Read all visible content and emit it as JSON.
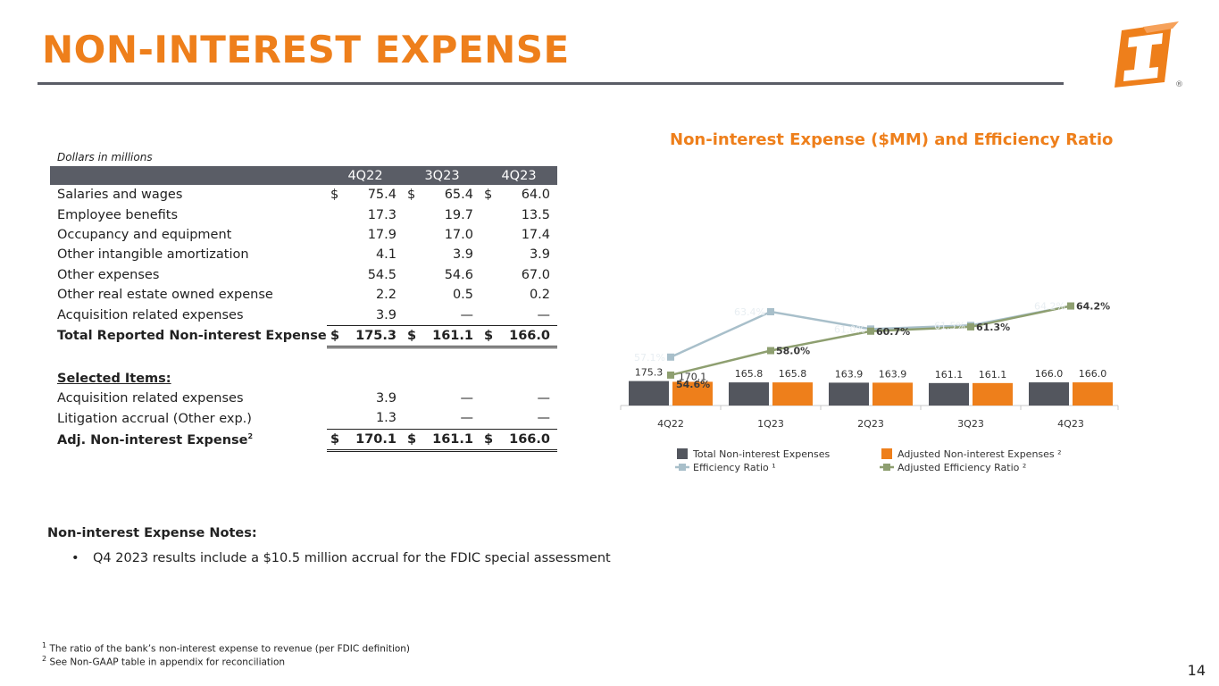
{
  "header": {
    "title": "NON-INTEREST EXPENSE"
  },
  "table": {
    "caption": "Dollars in millions",
    "columns": [
      "4Q22",
      "3Q23",
      "4Q23"
    ],
    "rows": [
      {
        "label": "Salaries and wages",
        "values": [
          "75.4",
          "65.4",
          "64.0"
        ],
        "dollar": true
      },
      {
        "label": "Employee benefits",
        "values": [
          "17.3",
          "19.7",
          "13.5"
        ]
      },
      {
        "label": "Occupancy and equipment",
        "values": [
          "17.9",
          "17.0",
          "17.4"
        ]
      },
      {
        "label": "Other intangible amortization",
        "values": [
          "4.1",
          "3.9",
          "3.9"
        ]
      },
      {
        "label": "Other expenses",
        "values": [
          "54.5",
          "54.6",
          "67.0"
        ]
      },
      {
        "label": "Other real estate owned expense",
        "values": [
          "2.2",
          "0.5",
          "0.2"
        ]
      },
      {
        "label": "Acquisition related expenses",
        "values": [
          "3.9",
          "—",
          "—"
        ]
      },
      {
        "label": "Total Reported Non-interest Expense",
        "values": [
          "175.3",
          "161.1",
          "166.0"
        ],
        "dollar": true,
        "bold": true
      }
    ],
    "selected_header": "Selected Items:",
    "selected_rows": [
      {
        "label": "Acquisition related expenses",
        "values": [
          "3.9",
          "—",
          "—"
        ]
      },
      {
        "label": "Litigation accrual (Other exp.)",
        "values": [
          "1.3",
          "—",
          "—"
        ]
      }
    ],
    "adj_row": {
      "label": "Adj. Non-interest Expense",
      "sup": "2",
      "values": [
        "170.1",
        "161.1",
        "166.0"
      ]
    },
    "dollar_sign": "$"
  },
  "chart_title": "Non-interest Expense ($MM) and Efficiency Ratio",
  "chart_data": {
    "type": "bar",
    "categories": [
      "4Q22",
      "1Q23",
      "2Q23",
      "3Q23",
      "4Q23"
    ],
    "series": [
      {
        "name": "Total Non-interest Expenses",
        "kind": "bar",
        "color": "#53565e",
        "values": [
          175.3,
          165.8,
          163.9,
          161.1,
          166.0
        ],
        "labels": [
          "175.3",
          "165.8",
          "163.9",
          "161.1",
          "166.0"
        ]
      },
      {
        "name": "Adjusted Non-interest Expenses ²",
        "kind": "bar",
        "color": "#ee7f1b",
        "values": [
          170.1,
          165.8,
          163.9,
          161.1,
          166.0
        ],
        "labels": [
          "170.1",
          "165.8",
          "163.9",
          "161.1",
          "166.0"
        ]
      },
      {
        "name": "Efficiency Ratio ¹",
        "kind": "line",
        "color": "#a8bfca",
        "values": [
          57.1,
          63.4,
          61.0,
          61.5,
          64.2
        ],
        "labels": [
          "57.1%",
          "63.4%",
          "61.0%",
          "61.5%",
          "64.2%"
        ]
      },
      {
        "name": "Adjusted Efficiency Ratio ²",
        "kind": "line",
        "color": "#8e9f70",
        "values": [
          54.6,
          58.0,
          60.7,
          61.3,
          64.2
        ],
        "labels": [
          "54.6%",
          "58.0%",
          "60.7%",
          "61.3%",
          "64.2%"
        ]
      }
    ],
    "legend_position": "bottom"
  },
  "notes": {
    "title": "Non-interest Expense Notes:",
    "bullets": [
      "Q4 2023 results include a $10.5 million accrual for the FDIC special assessment"
    ]
  },
  "footnotes": [
    {
      "mark": "1",
      "text": "The ratio of the bank’s non-interest expense to revenue (per FDIC definition)"
    },
    {
      "mark": "2",
      "text": "See Non-GAAP table in appendix for reconciliation"
    }
  ],
  "page_number": "14",
  "brand": {
    "accent": "#ee7f1b",
    "dark": "#5a5d66",
    "registered": "®"
  }
}
